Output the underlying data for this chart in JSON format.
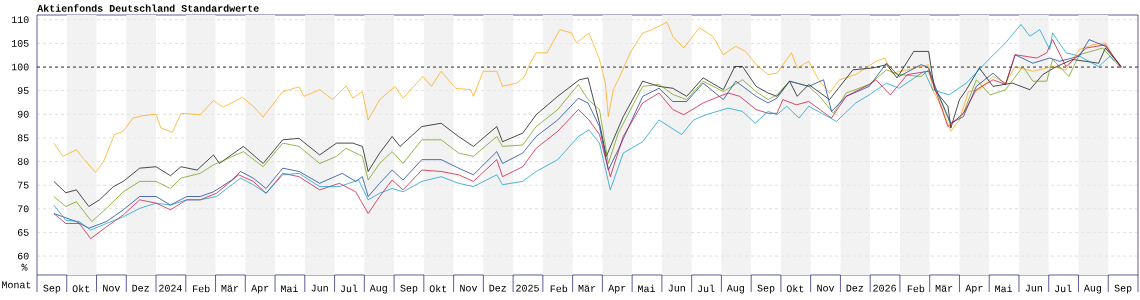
{
  "chart_data": {
    "type": "line",
    "title": "Aktienfonds Deutschland Standardwerte",
    "xlabel": "Monat",
    "ylabel": "%",
    "xlim": [
      "2023-09-01",
      "2026-10-01"
    ],
    "xticks": [
      {
        "value": "2023-09-16",
        "label": "Sep"
      },
      {
        "value": "2023-10-16",
        "label": "Okt"
      },
      {
        "value": "2023-11-16",
        "label": "Nov"
      },
      {
        "value": "2023-12-16",
        "label": "Dez"
      },
      {
        "value": "2024-01-16",
        "label": "2024"
      },
      {
        "value": "2024-02-16",
        "label": "Feb"
      },
      {
        "value": "2024-03-16",
        "label": "Mär"
      },
      {
        "value": "2024-04-16",
        "label": "Apr"
      },
      {
        "value": "2024-05-16",
        "label": "Mai"
      },
      {
        "value": "2024-06-16",
        "label": "Jun"
      },
      {
        "value": "2024-07-16",
        "label": "Jul"
      },
      {
        "value": "2024-08-16",
        "label": "Aug"
      },
      {
        "value": "2024-09-16",
        "label": "Sep"
      },
      {
        "value": "2024-10-16",
        "label": "Okt"
      },
      {
        "value": "2024-11-16",
        "label": "Nov"
      },
      {
        "value": "2024-12-16",
        "label": "Dez"
      },
      {
        "value": "2025-01-16",
        "label": "2025"
      },
      {
        "value": "2025-02-16",
        "label": "Feb"
      },
      {
        "value": "2025-03-16",
        "label": "Mär"
      },
      {
        "value": "2025-04-16",
        "label": "Apr"
      },
      {
        "value": "2025-05-16",
        "label": "Mai"
      },
      {
        "value": "2025-06-16",
        "label": "Jun"
      },
      {
        "value": "2025-07-16",
        "label": "Jul"
      },
      {
        "value": "2025-08-16",
        "label": "Aug"
      },
      {
        "value": "2025-09-16",
        "label": "Sep"
      },
      {
        "value": "2025-10-16",
        "label": "Okt"
      },
      {
        "value": "2025-11-16",
        "label": "Nov"
      },
      {
        "value": "2025-12-16",
        "label": "Dez"
      },
      {
        "value": "2026-01-16",
        "label": "2026"
      },
      {
        "value": "2026-02-16",
        "label": "Feb"
      },
      {
        "value": "2026-03-16",
        "label": "Mär"
      },
      {
        "value": "2026-04-16",
        "label": "Apr"
      },
      {
        "value": "2026-05-16",
        "label": "Mai"
      },
      {
        "value": "2026-06-16",
        "label": "Jun"
      },
      {
        "value": "2026-07-16",
        "label": "Jul"
      },
      {
        "value": "2026-08-16",
        "label": "Aug"
      },
      {
        "value": "2026-09-16",
        "label": "Sep"
      }
    ],
    "ylim": [
      56,
      111
    ],
    "yticks": [
      60,
      65,
      70,
      75,
      80,
      85,
      90,
      95,
      100,
      105,
      110
    ],
    "grid": "y",
    "marker": "none",
    "line_style": "solid",
    "ref_lines": [
      {
        "axis": "y",
        "value": 100,
        "color": "#000000",
        "line_style": "dashed"
      }
    ],
    "bands": [
      {
        "axis": "x",
        "from": "2023-10-01",
        "to": "2023-11-01",
        "color": "#f2f2f2"
      },
      {
        "axis": "x",
        "from": "2023-12-01",
        "to": "2024-01-01",
        "color": "#f2f2f2"
      },
      {
        "axis": "x",
        "from": "2024-02-01",
        "to": "2024-03-01",
        "color": "#f2f2f2"
      },
      {
        "axis": "x",
        "from": "2024-04-01",
        "to": "2024-05-01",
        "color": "#f2f2f2"
      },
      {
        "axis": "x",
        "from": "2024-06-01",
        "to": "2024-07-01",
        "color": "#f2f2f2"
      },
      {
        "axis": "x",
        "from": "2024-08-01",
        "to": "2024-09-01",
        "color": "#f2f2f2"
      },
      {
        "axis": "x",
        "from": "2024-10-01",
        "to": "2024-11-01",
        "color": "#f2f2f2"
      },
      {
        "axis": "x",
        "from": "2024-12-01",
        "to": "2025-01-01",
        "color": "#f2f2f2"
      },
      {
        "axis": "x",
        "from": "2025-02-01",
        "to": "2025-03-01",
        "color": "#f2f2f2"
      },
      {
        "axis": "x",
        "from": "2025-04-01",
        "to": "2025-05-01",
        "color": "#f2f2f2"
      },
      {
        "axis": "x",
        "from": "2025-06-01",
        "to": "2025-07-01",
        "color": "#f2f2f2"
      },
      {
        "axis": "x",
        "from": "2025-08-01",
        "to": "2025-09-01",
        "color": "#f2f2f2"
      },
      {
        "axis": "x",
        "from": "2025-10-01",
        "to": "2025-11-01",
        "color": "#f2f2f2"
      },
      {
        "axis": "x",
        "from": "2025-12-01",
        "to": "2026-01-01",
        "color": "#f2f2f2"
      },
      {
        "axis": "x",
        "from": "2026-02-01",
        "to": "2026-03-01",
        "color": "#f2f2f2"
      },
      {
        "axis": "x",
        "from": "2026-04-01",
        "to": "2026-05-01",
        "color": "#f2f2f2"
      },
      {
        "axis": "x",
        "from": "2026-06-01",
        "to": "2026-07-01",
        "color": "#f2f2f2"
      },
      {
        "axis": "x",
        "from": "2026-08-01",
        "to": "2026-09-01",
        "color": "#f2f2f2"
      }
    ],
    "series": [
      {
        "color": "#ffa500",
        "x": [
          "2023-09-18",
          "2023-09-27",
          "2023-10-11",
          "2023-10-18",
          "2023-10-31",
          "2023-11-08",
          "2023-11-19",
          "2023-11-28",
          "2023-12-08",
          "2023-12-18",
          "2024-01-01",
          "2024-01-06",
          "2024-01-18",
          "2024-01-27",
          "2024-02-15",
          "2024-02-28",
          "2024-03-09",
          "2024-03-29",
          "2024-04-09",
          "2024-04-19",
          "2024-05-09",
          "2024-05-26",
          "2024-05-31",
          "2024-06-16",
          "2024-06-29",
          "2024-07-13",
          "2024-07-20",
          "2024-07-30",
          "2024-08-05",
          "2024-08-17",
          "2024-09-02",
          "2024-09-10",
          "2024-09-30",
          "2024-10-09",
          "2024-10-19",
          "2024-11-03",
          "2024-11-18",
          "2024-11-21",
          "2024-12-01",
          "2024-12-15",
          "2024-12-21",
          "2025-01-05",
          "2025-01-13",
          "2025-01-18",
          "2025-01-25",
          "2025-02-05",
          "2025-02-10",
          "2025-02-17",
          "2025-02-28",
          "2025-03-05",
          "2025-03-18",
          "2025-03-29",
          "2025-04-04",
          "2025-04-07",
          "2025-04-12",
          "2025-04-17",
          "2025-04-29",
          "2025-05-12",
          "2025-05-22",
          "2025-06-06",
          "2025-06-12",
          "2025-06-23",
          "2025-07-09",
          "2025-07-23",
          "2025-08-03",
          "2025-08-16",
          "2025-08-26",
          "2025-09-06",
          "2025-09-18",
          "2025-09-27",
          "2025-10-12",
          "2025-10-18",
          "2025-10-30",
          "2025-11-09",
          "2025-11-20",
          "2025-11-30",
          "2025-12-17",
          "2026-01-07",
          "2026-01-16",
          "2026-01-24",
          "2026-02-08",
          "2026-02-28",
          "2026-03-04",
          "2026-03-13",
          "2026-03-23",
          "2026-04-01",
          "2026-04-10",
          "2026-04-21",
          "2026-05-05",
          "2026-05-18",
          "2026-05-28",
          "2026-06-15",
          "2026-07-05",
          "2026-07-19",
          "2026-08-02",
          "2026-08-16",
          "2026-08-29",
          "2026-09-06",
          "2026-09-14"
        ],
        "values": [
          83.9,
          81.1,
          82.5,
          80.7,
          77.7,
          80.0,
          85.7,
          86.4,
          89.2,
          89.7,
          90.0,
          87.1,
          86.2,
          90.2,
          89.9,
          92.9,
          91.5,
          93.6,
          91.7,
          89.4,
          94.8,
          95.8,
          93.8,
          95.2,
          93.1,
          96.0,
          93.4,
          94.8,
          88.8,
          93.1,
          95.9,
          93.4,
          98.0,
          95.9,
          99.1,
          95.5,
          95.2,
          93.8,
          99.1,
          99.1,
          95.9,
          96.6,
          98.0,
          100.5,
          103.0,
          103.0,
          105.1,
          107.9,
          107.2,
          105.1,
          107.2,
          101.6,
          96.6,
          89.5,
          95.2,
          97.3,
          103.0,
          107.2,
          107.9,
          109.5,
          106.5,
          104.0,
          108.3,
          106.5,
          102.6,
          104.4,
          103.3,
          100.5,
          98.4,
          98.7,
          103.0,
          99.8,
          101.2,
          97.3,
          94.5,
          97.3,
          98.4,
          101.2,
          101.9,
          98.7,
          99.4,
          100.5,
          95.2,
          91.7,
          86.4,
          88.8,
          94.8,
          95.2,
          98.0,
          96.6,
          100.1,
          99.1,
          100.1,
          99.4,
          103.7,
          104.7,
          105.1,
          102.3,
          100.1
        ]
      },
      {
        "color": "#000000",
        "x": [
          "2023-09-18",
          "2023-09-30",
          "2023-10-11",
          "2023-10-24",
          "2023-11-04",
          "2023-11-18",
          "2023-11-28",
          "2023-12-15",
          "2024-01-01",
          "2024-01-16",
          "2024-01-27",
          "2024-02-12",
          "2024-02-28",
          "2024-03-05",
          "2024-03-30",
          "2024-04-19",
          "2024-05-09",
          "2024-05-26",
          "2024-06-16",
          "2024-07-03",
          "2024-07-20",
          "2024-07-30",
          "2024-08-05",
          "2024-08-17",
          "2024-08-30",
          "2024-09-07",
          "2024-09-29",
          "2024-10-19",
          "2024-11-06",
          "2024-11-21",
          "2024-12-15",
          "2024-12-21",
          "2025-01-11",
          "2025-01-25",
          "2025-02-15",
          "2025-03-08",
          "2025-03-17",
          "2025-03-29",
          "2025-04-05",
          "2025-04-12",
          "2025-04-22",
          "2025-05-12",
          "2025-05-29",
          "2025-06-12",
          "2025-06-26",
          "2025-07-13",
          "2025-08-03",
          "2025-08-15",
          "2025-08-23",
          "2025-09-06",
          "2025-09-18",
          "2025-09-27",
          "2025-10-10",
          "2025-10-18",
          "2025-10-30",
          "2025-11-20",
          "2025-12-14",
          "2026-01-04",
          "2026-01-18",
          "2026-01-29",
          "2026-02-14",
          "2026-02-28",
          "2026-03-06",
          "2026-03-20",
          "2026-03-23",
          "2026-04-01",
          "2026-04-08",
          "2026-04-21",
          "2026-05-05",
          "2026-05-25",
          "2026-06-12",
          "2026-06-25",
          "2026-07-09",
          "2026-07-26",
          "2026-08-22",
          "2026-08-29",
          "2026-09-14"
        ],
        "values": [
          75.8,
          73.4,
          74.0,
          70.5,
          71.9,
          74.7,
          75.8,
          78.6,
          78.9,
          77.0,
          78.9,
          78.2,
          81.4,
          79.6,
          83.2,
          79.6,
          84.6,
          84.9,
          81.4,
          83.9,
          83.9,
          83.2,
          77.9,
          81.8,
          85.3,
          83.2,
          87.4,
          88.1,
          85.3,
          83.2,
          87.4,
          84.2,
          86.0,
          89.9,
          93.8,
          97.3,
          97.7,
          88.1,
          81.1,
          84.6,
          89.5,
          97.0,
          95.9,
          95.5,
          93.8,
          97.7,
          95.2,
          100.1,
          100.1,
          95.9,
          94.5,
          93.8,
          97.0,
          93.8,
          96.3,
          93.1,
          99.4,
          99.8,
          100.5,
          97.7,
          103.3,
          103.3,
          95.2,
          91.7,
          87.1,
          93.1,
          95.2,
          99.8,
          95.9,
          96.6,
          95.2,
          98.4,
          100.1,
          101.6,
          100.8,
          104.0,
          100.1
        ]
      },
      {
        "color": "#669900",
        "x": [
          "2023-09-18",
          "2023-09-30",
          "2023-10-11",
          "2023-10-27",
          "2023-11-11",
          "2023-11-28",
          "2023-12-15",
          "2024-01-01",
          "2024-01-16",
          "2024-01-27",
          "2024-02-15",
          "2024-02-28",
          "2024-03-30",
          "2024-04-19",
          "2024-05-09",
          "2024-05-26",
          "2024-06-16",
          "2024-07-03",
          "2024-07-13",
          "2024-07-30",
          "2024-08-05",
          "2024-08-17",
          "2024-08-30",
          "2024-09-10",
          "2024-09-29",
          "2024-10-19",
          "2024-11-06",
          "2024-11-21",
          "2024-12-15",
          "2024-12-21",
          "2025-01-11",
          "2025-01-25",
          "2025-02-15",
          "2025-03-07",
          "2025-03-17",
          "2025-03-29",
          "2025-04-07",
          "2025-04-17",
          "2025-05-12",
          "2025-05-29",
          "2025-06-12",
          "2025-06-26",
          "2025-07-13",
          "2025-08-03",
          "2025-08-23",
          "2025-09-06",
          "2025-09-18",
          "2025-09-27",
          "2025-10-10",
          "2025-10-30",
          "2025-11-10",
          "2025-11-24",
          "2025-12-07",
          "2025-12-31",
          "2026-01-18",
          "2026-01-31",
          "2026-02-21",
          "2026-02-28",
          "2026-03-06",
          "2026-03-23",
          "2026-04-05",
          "2026-04-18",
          "2026-05-02",
          "2026-05-18",
          "2026-06-05",
          "2026-06-15",
          "2026-06-29",
          "2026-07-05",
          "2026-07-22",
          "2026-08-02",
          "2026-08-26",
          "2026-09-14"
        ],
        "values": [
          72.6,
          70.5,
          71.5,
          67.3,
          70.1,
          73.6,
          75.8,
          75.8,
          74.3,
          76.5,
          77.5,
          79.3,
          82.1,
          78.9,
          83.9,
          83.2,
          79.6,
          81.1,
          82.8,
          81.1,
          76.1,
          79.6,
          82.1,
          79.6,
          84.6,
          84.6,
          81.8,
          81.1,
          85.3,
          83.2,
          83.5,
          87.4,
          91.0,
          96.3,
          93.1,
          91.0,
          79.6,
          86.0,
          95.9,
          96.3,
          94.2,
          93.1,
          97.0,
          94.8,
          97.3,
          94.8,
          93.1,
          94.1,
          97.0,
          95.9,
          93.8,
          90.2,
          94.5,
          96.3,
          99.4,
          98.4,
          98.0,
          99.4,
          95.9,
          87.8,
          90.2,
          97.3,
          94.1,
          95.2,
          100.1,
          97.0,
          97.0,
          101.6,
          98.0,
          102.6,
          104.0,
          99.8
        ]
      },
      {
        "color": "#003399",
        "x": [
          "2023-09-18",
          "2023-10-11",
          "2023-10-24",
          "2023-11-11",
          "2023-11-28",
          "2023-12-15",
          "2024-01-01",
          "2024-01-16",
          "2024-02-02",
          "2024-02-15",
          "2024-02-28",
          "2024-03-18",
          "2024-03-27",
          "2024-04-09",
          "2024-04-22",
          "2024-05-09",
          "2024-05-26",
          "2024-06-16",
          "2024-07-09",
          "2024-07-23",
          "2024-07-30",
          "2024-08-05",
          "2024-08-17",
          "2024-08-30",
          "2024-09-10",
          "2024-09-29",
          "2024-10-19",
          "2024-11-06",
          "2024-11-21",
          "2024-12-15",
          "2024-12-21",
          "2025-01-11",
          "2025-01-25",
          "2025-02-15",
          "2025-03-07",
          "2025-03-17",
          "2025-03-29",
          "2025-04-07",
          "2025-04-17",
          "2025-05-12",
          "2025-05-29",
          "2025-06-12",
          "2025-06-26",
          "2025-07-13",
          "2025-08-03",
          "2025-08-16",
          "2025-09-06",
          "2025-09-18",
          "2025-09-27",
          "2025-10-10",
          "2025-10-30",
          "2025-11-14",
          "2025-11-22",
          "2025-12-07",
          "2025-12-31",
          "2026-01-18",
          "2026-01-31",
          "2026-02-21",
          "2026-02-28",
          "2026-03-08",
          "2026-03-23",
          "2026-04-05",
          "2026-04-18",
          "2026-05-05",
          "2026-05-18",
          "2026-05-28",
          "2026-06-15",
          "2026-07-02",
          "2026-07-12",
          "2026-08-02",
          "2026-08-12",
          "2026-08-29",
          "2026-09-14"
        ],
        "values": [
          69.0,
          67.3,
          65.9,
          67.3,
          69.8,
          72.6,
          72.6,
          70.8,
          72.6,
          72.6,
          73.6,
          76.1,
          77.9,
          76.5,
          74.3,
          78.6,
          77.9,
          75.4,
          77.5,
          75.8,
          76.8,
          72.6,
          75.4,
          78.2,
          76.1,
          80.4,
          80.4,
          78.6,
          77.2,
          82.1,
          79.6,
          81.8,
          85.3,
          88.8,
          93.4,
          92.4,
          87.4,
          78.2,
          82.5,
          93.8,
          95.5,
          92.7,
          92.7,
          96.6,
          93.1,
          97.0,
          93.8,
          92.4,
          93.4,
          97.0,
          95.9,
          97.3,
          90.6,
          93.8,
          95.9,
          100.8,
          98.0,
          100.5,
          99.8,
          95.2,
          88.1,
          89.5,
          95.9,
          98.7,
          96.3,
          102.6,
          100.8,
          101.9,
          101.2,
          102.3,
          105.8,
          104.4,
          100.1
        ]
      },
      {
        "color": "#cc0033",
        "x": [
          "2023-09-18",
          "2023-09-30",
          "2023-10-14",
          "2023-10-26",
          "2023-11-11",
          "2023-11-28",
          "2023-12-15",
          "2024-01-01",
          "2024-01-16",
          "2024-02-02",
          "2024-02-15",
          "2024-03-02",
          "2024-03-25",
          "2024-04-09",
          "2024-04-22",
          "2024-05-09",
          "2024-05-26",
          "2024-06-16",
          "2024-07-06",
          "2024-07-23",
          "2024-08-05",
          "2024-08-17",
          "2024-08-30",
          "2024-09-10",
          "2024-09-29",
          "2024-10-19",
          "2024-11-06",
          "2024-11-21",
          "2024-12-15",
          "2024-12-21",
          "2025-01-11",
          "2025-01-25",
          "2025-02-15",
          "2025-03-07",
          "2025-03-18",
          "2025-03-29",
          "2025-04-09",
          "2025-04-22",
          "2025-05-12",
          "2025-05-29",
          "2025-06-12",
          "2025-06-23",
          "2025-07-13",
          "2025-07-30",
          "2025-08-08",
          "2025-08-20",
          "2025-09-06",
          "2025-09-18",
          "2025-09-27",
          "2025-10-03",
          "2025-10-17",
          "2025-10-30",
          "2025-11-22",
          "2025-12-07",
          "2025-12-31",
          "2026-01-07",
          "2026-01-22",
          "2026-02-08",
          "2026-02-28",
          "2026-03-08",
          "2026-03-20",
          "2026-04-05",
          "2026-04-18",
          "2026-05-05",
          "2026-05-18",
          "2026-05-28",
          "2026-06-19",
          "2026-06-29",
          "2026-07-05",
          "2026-07-19",
          "2026-08-09",
          "2026-08-29",
          "2026-09-14"
        ],
        "values": [
          69.0,
          66.9,
          66.9,
          63.7,
          66.2,
          68.7,
          71.9,
          71.2,
          69.8,
          71.9,
          71.9,
          73.3,
          77.2,
          75.8,
          73.3,
          77.5,
          76.8,
          74.0,
          75.4,
          73.6,
          69.0,
          72.6,
          76.1,
          74.0,
          78.2,
          77.9,
          77.2,
          75.8,
          80.4,
          76.8,
          78.9,
          82.8,
          86.4,
          91.0,
          88.8,
          85.7,
          76.8,
          85.3,
          92.4,
          94.5,
          91.0,
          89.9,
          92.4,
          93.8,
          94.5,
          93.8,
          91.0,
          90.2,
          90.2,
          93.1,
          92.0,
          92.7,
          89.2,
          93.8,
          96.3,
          97.3,
          94.1,
          98.4,
          99.1,
          94.5,
          87.4,
          90.2,
          95.2,
          97.3,
          96.3,
          102.6,
          101.9,
          103.0,
          105.8,
          100.1,
          104.0,
          104.7,
          99.8
        ]
      },
      {
        "color": "#0099cc",
        "x": [
          "2023-09-18",
          "2023-09-30",
          "2023-10-14",
          "2023-10-26",
          "2023-11-11",
          "2023-11-28",
          "2023-12-15",
          "2024-01-01",
          "2024-01-16",
          "2024-02-02",
          "2024-02-15",
          "2024-03-02",
          "2024-03-27",
          "2024-04-09",
          "2024-04-22",
          "2024-05-09",
          "2024-05-26",
          "2024-06-16",
          "2024-07-06",
          "2024-07-26",
          "2024-08-05",
          "2024-08-17",
          "2024-08-30",
          "2024-09-10",
          "2024-09-29",
          "2024-10-19",
          "2024-11-06",
          "2024-11-21",
          "2024-12-15",
          "2024-12-21",
          "2025-01-11",
          "2025-01-25",
          "2025-02-15",
          "2025-03-07",
          "2025-03-18",
          "2025-03-29",
          "2025-04-09",
          "2025-04-22",
          "2025-05-12",
          "2025-05-29",
          "2025-06-21",
          "2025-07-03",
          "2025-07-16",
          "2025-08-08",
          "2025-08-23",
          "2025-09-05",
          "2025-09-18",
          "2025-09-27",
          "2025-10-07",
          "2025-10-20",
          "2025-10-30",
          "2025-11-27",
          "2025-12-17",
          "2025-12-31",
          "2026-01-18",
          "2026-01-31",
          "2026-02-24",
          "2026-03-04",
          "2026-03-21",
          "2026-04-08",
          "2026-05-02",
          "2026-05-18",
          "2026-06-03",
          "2026-06-12",
          "2026-06-22",
          "2026-07-02",
          "2026-07-05",
          "2026-07-19",
          "2026-08-02",
          "2026-08-22",
          "2026-09-03",
          "2026-09-07"
        ],
        "values": [
          70.8,
          67.6,
          67.3,
          65.5,
          66.9,
          68.3,
          70.1,
          71.2,
          70.8,
          71.9,
          71.9,
          72.6,
          76.5,
          75.1,
          73.3,
          77.2,
          77.5,
          74.7,
          74.7,
          76.1,
          71.9,
          73.3,
          74.3,
          73.6,
          75.8,
          76.8,
          75.4,
          74.7,
          77.2,
          75.1,
          75.8,
          77.9,
          80.4,
          85.3,
          86.7,
          83.9,
          74.0,
          81.8,
          84.2,
          88.8,
          85.7,
          88.8,
          89.9,
          91.3,
          90.6,
          88.1,
          90.6,
          89.9,
          91.7,
          89.2,
          91.7,
          88.5,
          92.4,
          94.1,
          96.6,
          95.5,
          99.1,
          95.2,
          94.1,
          96.6,
          101.9,
          105.1,
          109.0,
          106.5,
          107.9,
          103.7,
          107.2,
          103.0,
          102.3,
          100.1,
          102.3,
          101.2
        ]
      }
    ]
  }
}
